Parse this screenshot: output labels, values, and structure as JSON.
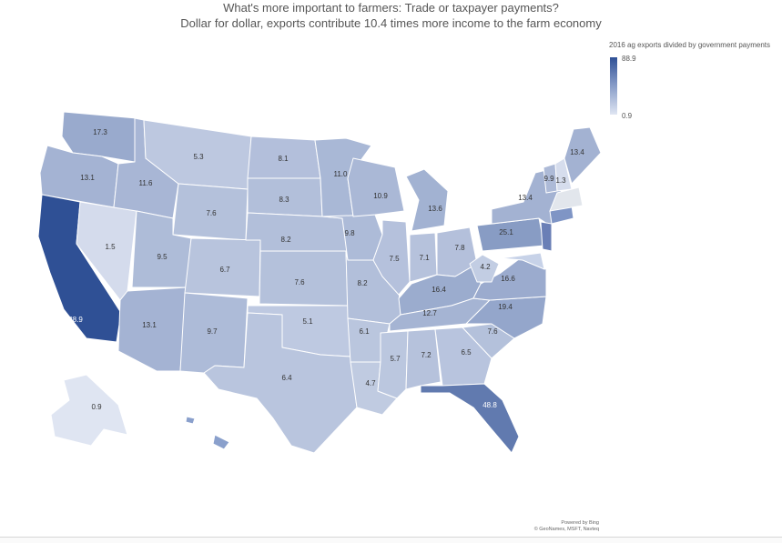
{
  "title": "What's more important to farmers: Trade or taxpayer payments?",
  "subtitle": "Dollar for dollar, exports contribute 10.4 times more income to the farm economy",
  "legend": {
    "title": "2016 ag exports divided by government payments",
    "max": "88.9",
    "min": "0.9",
    "color_max": "#2f5095",
    "color_min": "#dfe5f2"
  },
  "credits": {
    "line1": "Powered by Bing",
    "line2": "© GeoNames, MSFT, Navteq"
  },
  "map_data": {
    "type": "choropleth",
    "regions": [
      {
        "id": "WA",
        "value": 17.3
      },
      {
        "id": "OR",
        "value": 13.1
      },
      {
        "id": "CA",
        "value": 88.9
      },
      {
        "id": "NV",
        "value": 1.5
      },
      {
        "id": "ID",
        "value": 11.6
      },
      {
        "id": "MT",
        "value": 5.3
      },
      {
        "id": "WY",
        "value": 7.6
      },
      {
        "id": "UT",
        "value": 9.5
      },
      {
        "id": "AZ",
        "value": 13.1
      },
      {
        "id": "CO",
        "value": 6.7
      },
      {
        "id": "NM",
        "value": 9.7
      },
      {
        "id": "ND",
        "value": 8.1
      },
      {
        "id": "SD",
        "value": 8.3
      },
      {
        "id": "NE",
        "value": 8.2
      },
      {
        "id": "KS",
        "value": 7.6
      },
      {
        "id": "OK",
        "value": 5.1
      },
      {
        "id": "TX",
        "value": 6.4
      },
      {
        "id": "MN",
        "value": 11.0
      },
      {
        "id": "IA",
        "value": 9.8
      },
      {
        "id": "MO",
        "value": 8.2
      },
      {
        "id": "AR",
        "value": 6.1
      },
      {
        "id": "LA",
        "value": 4.7
      },
      {
        "id": "WI",
        "value": 10.9
      },
      {
        "id": "IL",
        "value": 7.5
      },
      {
        "id": "MI",
        "value": 13.6
      },
      {
        "id": "IN",
        "value": 7.1
      },
      {
        "id": "OH",
        "value": 7.8
      },
      {
        "id": "KY",
        "value": 16.4
      },
      {
        "id": "TN",
        "value": 12.7
      },
      {
        "id": "MS",
        "value": 5.7
      },
      {
        "id": "AL",
        "value": 7.2
      },
      {
        "id": "GA",
        "value": 6.5
      },
      {
        "id": "FL",
        "value": 48.8
      },
      {
        "id": "SC",
        "value": 7.6
      },
      {
        "id": "NC",
        "value": 19.4
      },
      {
        "id": "VA",
        "value": 16.6
      },
      {
        "id": "WV",
        "value": 4.2
      },
      {
        "id": "PA",
        "value": 25.1
      },
      {
        "id": "NY",
        "value": 13.4
      },
      {
        "id": "VT",
        "value": 9.9
      },
      {
        "id": "NH",
        "value": 1.3
      },
      {
        "id": "ME",
        "value": 13.4
      },
      {
        "id": "AK",
        "value": 0.9
      }
    ]
  }
}
